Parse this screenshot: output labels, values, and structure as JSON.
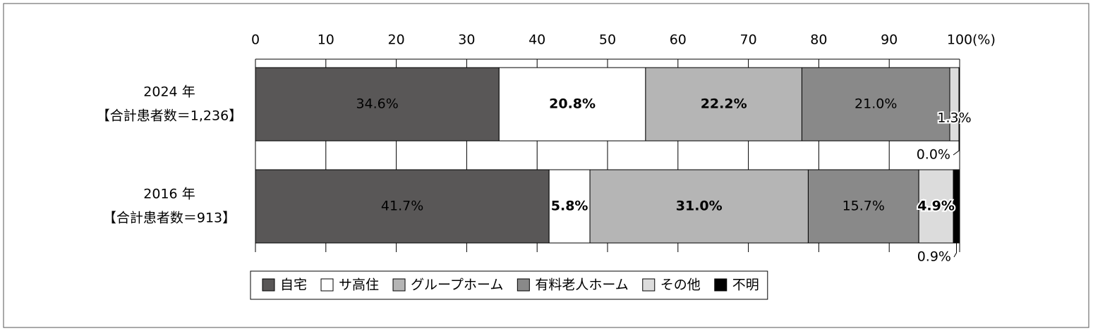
{
  "chart_data": {
    "type": "stacked-bar-horizontal",
    "categories": [
      "2024 年",
      "2016 年"
    ],
    "category_notes": [
      "【合計患者数＝1,236】",
      "【合計患者数＝913】"
    ],
    "xlabel": "(%)",
    "xlim": [
      0,
      100
    ],
    "xticks": [
      0,
      10,
      20,
      30,
      40,
      50,
      60,
      70,
      80,
      90,
      100
    ],
    "grid": true,
    "legend": "bottom",
    "series": [
      {
        "name": "自宅",
        "color": "#595757",
        "values": [
          34.6,
          41.7
        ],
        "value_labels": [
          "34.6%",
          "41.7%"
        ]
      },
      {
        "name": "サ高住",
        "color": "#ffffff",
        "values": [
          20.8,
          5.8
        ],
        "value_labels": [
          "20.8%",
          "5.8%"
        ]
      },
      {
        "name": "グループホーム",
        "color": "#b5b5b5",
        "values": [
          22.2,
          31.0
        ],
        "value_labels": [
          "22.2%",
          "31.0%"
        ]
      },
      {
        "name": "有料老人ホーム",
        "color": "#898989",
        "values": [
          21.0,
          15.7
        ],
        "value_labels": [
          "21.0%",
          "15.7%"
        ]
      },
      {
        "name": "その他",
        "color": "#dcdcdc",
        "values": [
          1.3,
          4.9
        ],
        "value_labels": [
          "1.3%",
          "4.9%"
        ]
      },
      {
        "name": "不明",
        "color": "#000000",
        "values": [
          0.0,
          0.9
        ],
        "value_labels": [
          "0.0%",
          "0.9%"
        ]
      }
    ]
  }
}
